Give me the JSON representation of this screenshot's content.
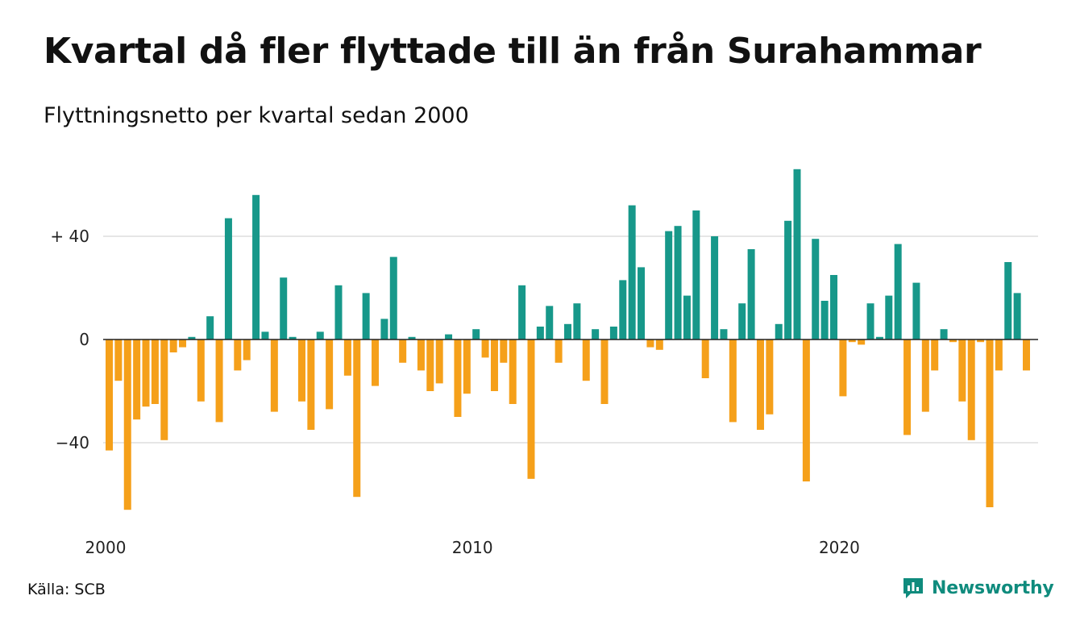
{
  "title": "Kvartal då fler flyttade till än från Surahammar",
  "subtitle": "Flyttningsnetto per kvartal sedan 2000",
  "source": "Källa: SCB",
  "brand": {
    "name": "Newsworthy",
    "icon": "newsworthy-logo-icon",
    "color": "#0f8b7d"
  },
  "colors": {
    "positive": "#17988a",
    "negative": "#f5a01a",
    "grid": "#dddddd",
    "zero_line": "#222222"
  },
  "chart_data": {
    "type": "bar",
    "title": "Kvartal då fler flyttade till än från Surahammar",
    "subtitle": "Flyttningsnetto per kvartal sedan 2000",
    "xlabel": "",
    "ylabel": "",
    "x_start": "2000 Q1",
    "x_ticks": [
      {
        "quarter_index": 0,
        "label": "2000"
      },
      {
        "quarter_index": 40,
        "label": "2010"
      },
      {
        "quarter_index": 80,
        "label": "2020"
      }
    ],
    "y_ticks": [
      {
        "value": 40,
        "label": "+ 40"
      },
      {
        "value": 0,
        "label": "0"
      },
      {
        "value": -40,
        "label": "−40"
      }
    ],
    "ylim": [
      -68,
      68
    ],
    "grid": true,
    "values": [
      -43,
      -16,
      -66,
      -31,
      -26,
      -25,
      -39,
      -5,
      -3,
      1,
      -24,
      9,
      -32,
      47,
      -12,
      -8,
      56,
      3,
      -28,
      24,
      1,
      -24,
      -35,
      3,
      -27,
      21,
      -14,
      -61,
      18,
      -18,
      8,
      32,
      -9,
      1,
      -12,
      -20,
      -17,
      2,
      -30,
      -21,
      4,
      -7,
      -20,
      -9,
      -25,
      21,
      -54,
      5,
      13,
      -9,
      6,
      14,
      -16,
      4,
      -25,
      5,
      23,
      52,
      28,
      -3,
      -4,
      42,
      44,
      17,
      50,
      -15,
      40,
      4,
      -32,
      14,
      35,
      -35,
      -29,
      6,
      46,
      66,
      -55,
      39,
      15,
      25,
      -22,
      -1,
      -2,
      14,
      1,
      17,
      37,
      -37,
      22,
      -28,
      -12,
      4,
      -1,
      -24,
      -39,
      -1,
      -65,
      -12,
      30,
      18,
      -12
    ]
  }
}
